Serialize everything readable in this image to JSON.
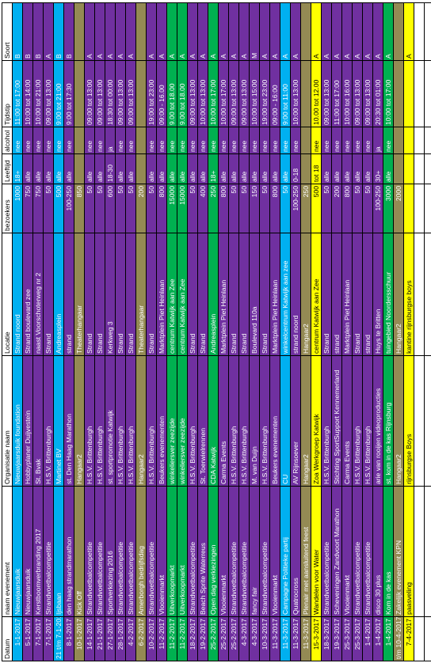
{
  "headers": [
    "Datum",
    "naam evenement",
    "Organisatie naam",
    "Locatie",
    "bezoekers",
    "Leeftijd",
    "alcohol",
    "Tijdstip",
    "Soort"
  ],
  "rows": [
    {
      "c": "cyan",
      "cells": [
        "1-1-2017",
        "Nieuwjaarsduik",
        "Nieuwjaarsduik foundation",
        "Strand noord",
        "1000",
        "18+",
        "nee",
        "11:00 tot 17:00",
        "B"
      ]
    },
    {
      "c": "purple",
      "cells": [
        "5-1-2017",
        "Nieuwjaarsduik",
        "Hobbyplaner Duijvestein",
        "Strand boulevard zee",
        "750",
        "alle",
        "nee",
        "10:00 tot 14:00",
        "B"
      ]
    },
    {
      "c": "purple",
      "cells": [
        "7-1-2017",
        "Kerstboomverbranding 2017",
        "St. Bvak",
        "naast Voorschoterweg nr 2",
        "750",
        "alle",
        "nee",
        "10:00 tot 21:00",
        "B"
      ]
    },
    {
      "c": "purple",
      "cells": [
        "7-1-2017",
        "Strandvoetbalcompetitie",
        "H.S.V. Brittenburgh",
        "Strand",
        "50",
        "alle",
        "nee",
        "09:00 tot 13:00",
        "A"
      ]
    },
    {
      "c": "cyan",
      "cells": [
        "21 t/m 7-1-2017",
        "Ijsbaan",
        "Martinet BV",
        "Andreasplein",
        "500",
        "alle",
        "nee",
        "9:00 tot 21:00",
        "B"
      ]
    },
    {
      "c": "purple",
      "cells": [
        "8-1-2017",
        "den haag strandmarathon",
        "st. Den Haag Marathon",
        "strand",
        "100-250",
        "alle",
        "nee",
        "9:00 tot 17:30",
        "B"
      ]
    },
    {
      "c": "olive",
      "cells": [
        "10-1-2017",
        "Kick Off",
        "Hangaar2",
        "Theaterhangaar",
        "850",
        "",
        "",
        "",
        ""
      ]
    },
    {
      "c": "purple",
      "cells": [
        "14-1-2017",
        "Strandvoetbalcompetitie",
        "H.S.V. Brittenburgh",
        "Strand",
        "50",
        "alle",
        "nee",
        "09:00 tot 13:00",
        "A"
      ]
    },
    {
      "c": "purple",
      "cells": [
        "21-1-2017",
        "Strandvoetbalcompetitie",
        "H.S.V. Brittenburgh",
        "Strand",
        "50",
        "alle",
        "nee",
        "09:00 tot 13:00",
        "A"
      ]
    },
    {
      "c": "purple",
      "cells": [
        "27-1-2017",
        "Sportverkiezing 2016",
        "st. sportpromotie Katwijk",
        "Kerkweg 3",
        "600",
        "18-30",
        "ja",
        "18:30 tot 00:00",
        "A"
      ]
    },
    {
      "c": "purple",
      "cells": [
        "28-1-2017",
        "Strandvoetbalcompetitie",
        "H.S.V. Brittenburgh",
        "Strand",
        "50",
        "alle",
        "nee",
        "09:00 tot 13:00",
        "A"
      ]
    },
    {
      "c": "purple",
      "cells": [
        "4-2-2017",
        "Strandvoetbalcompetitie",
        "H.S.V. Brittenburgh",
        "Strand",
        "50",
        "alle",
        "nee",
        "09:00 tot 13:00",
        "A"
      ]
    },
    {
      "c": "olive",
      "cells": [
        "6-2-2017",
        "Amerborgh bedrijfsdag",
        "Hangaar2",
        "Theaterhangaar",
        "200",
        "",
        "",
        "",
        ""
      ]
    },
    {
      "c": "purple",
      "cells": [
        "10-2-2017",
        "Strandvoetbalcompetitie",
        "H.S.V. Brittenburgh",
        "Strand",
        "50",
        "alle",
        "nee",
        "19:00 tot 23:00",
        "A"
      ]
    },
    {
      "c": "purple",
      "cells": [
        "11-2-2017",
        "Vlooienmarkt",
        "Beukers evenementen",
        "Marktplein Piet Heinlaan",
        "800",
        "alle",
        "nee",
        "09:00 - 16.00",
        "A"
      ]
    },
    {
      "c": "green",
      "cells": [
        "11-2-2017",
        "Uitverkoopmarkt",
        "winkeliersver zeezijde",
        "centrum Katwijk aan Zee",
        "15000",
        "alle",
        "nee",
        "9.00 tot 18.00",
        "A"
      ]
    },
    {
      "c": "green",
      "cells": [
        "11-2-2017",
        "Uitverkoopmarkt",
        "winkeliersver zeezijde",
        "centrum Katwijk aan Zee",
        "15000",
        "alle",
        "nee",
        "9.00 tot 18.00",
        "A"
      ]
    },
    {
      "c": "purple",
      "cells": [
        "18-2-2017",
        "Strandvoetbalcompetitie",
        "H.S.V. Brittenburgh",
        "Strand",
        "50",
        "alle",
        "nee",
        "09:00 tot 13:00",
        "A"
      ]
    },
    {
      "c": "purple",
      "cells": [
        "19-2-2017",
        "Beach Sprite Waterreus",
        "St. Toerwielrennen",
        "Strand",
        "400",
        "alle",
        "nee",
        "10:00 tot 13:00",
        "A"
      ]
    },
    {
      "c": "green",
      "cells": [
        "25-2-2017",
        "Open dag verkiezingen",
        "CDA Katwijk",
        "Andreasplein",
        "250",
        "18+",
        "nee",
        "10:00 tot 17:00",
        "A"
      ]
    },
    {
      "c": "purple",
      "cells": [
        "25-2-2017",
        "Vlooienmarkt",
        "Carma Events",
        "Marktplein Piet Heinlaan",
        "800",
        "alle",
        "nee",
        "10:00 tot 17:00",
        "A"
      ]
    },
    {
      "c": "purple",
      "cells": [
        "25-2-2017",
        "Strandvoetbalcompetitie",
        "H.S.V. Brittenburgh",
        "Strand",
        "50",
        "alle",
        "nee",
        "09:00 tot 13:00",
        "A"
      ]
    },
    {
      "c": "purple",
      "cells": [
        "4-3-2017",
        "Strandvoetbalcompetitie",
        "H.S.V. Brittenburgh",
        "Strand",
        "50",
        "alle",
        "nee",
        "09:00 tot 13:00",
        "A"
      ]
    },
    {
      "c": "purple",
      "cells": [
        "4-3-2017",
        "fancy fair",
        "M. van Duijn",
        "Boulevard 110a",
        "150",
        "alle",
        "nee",
        "10:00 tot 15:00",
        "M"
      ]
    },
    {
      "c": "purple",
      "cells": [
        "10-3-2017",
        "Strandvoetbalcompetitie",
        "H.S.V. Brittenburgh",
        "Strand",
        "50",
        "alle",
        "nee",
        "19:00 tot 23:00",
        "A"
      ]
    },
    {
      "c": "purple",
      "cells": [
        "11-3-2017",
        "Vlooienmarkt",
        "Beukers evenementen",
        "Marktplein Piet Heinlaan",
        "800",
        "alle",
        "nee",
        "09:00 - 16:00",
        "A"
      ]
    },
    {
      "c": "cyan",
      "cells": [
        "11-3-2017",
        "Campagne Politieke partij",
        "CU",
        "winkelcentrum Katwijk aan zee",
        "50",
        "alle",
        "nee",
        "9:00 tot 11:00",
        "A"
      ]
    },
    {
      "c": "purple",
      "cells": [
        "11-3-2017",
        "Quatrocross",
        "AV Rijnsoever",
        "strand noord",
        "100-250",
        "0-18",
        "nee",
        "10:00 tot 13:00",
        "A"
      ]
    },
    {
      "c": "olive",
      "cells": [
        "11-3-2017",
        "Plenair met aansluitend feest",
        "Hangaar2",
        "Hangaar2",
        "250",
        "",
        "",
        "",
        ""
      ]
    },
    {
      "c": "yellow",
      "cells": [
        "15-3-2017",
        "Wandelen voor Water",
        "Zoa Werkgroep Katwijk",
        "centrum Katwijk aan Zee",
        "500",
        "tot 18",
        "nee",
        "10.00 tot 12.00",
        "A"
      ]
    },
    {
      "c": "purple",
      "cells": [
        "18-3-2017",
        "Strandvoetbalcompetitie",
        "H.S.V. Brittenburgh",
        "Strand",
        "50",
        "alle",
        "nee",
        "09:00 tot 13:00",
        "A"
      ]
    },
    {
      "c": "purple",
      "cells": [
        "19-3-2017",
        "Scheveningen Zandvoort Marathon",
        "Stichting SportSupport Kennemerland",
        "strand",
        "200",
        "alle",
        "nee",
        "11:00 tot 17:00",
        "A"
      ]
    },
    {
      "c": "purple",
      "cells": [
        "25-3-2017",
        "Vlooienmarkt",
        "Carma Events",
        "Marktplein Piet Heinlaan",
        "800",
        "alle",
        "nee",
        "10:00 tot 16:00",
        "A"
      ]
    },
    {
      "c": "purple",
      "cells": [
        "25-3-2017",
        "Strandvoetbalcompetitie",
        "H.S.V. Brittenburgh",
        "Strand",
        "50",
        "alle",
        "nee",
        "09:00 tot 13:00",
        "A"
      ]
    },
    {
      "c": "purple",
      "cells": [
        "1-4-2017",
        "Strandvoetbalcompetitie",
        "H.S.V. Brittenburgh",
        "strand",
        "50",
        "alle",
        "nee",
        "09:00 tot 13:00",
        "A"
      ]
    },
    {
      "c": "purple",
      "cells": [
        "1-4-2017",
        "disco 30 plus",
        "arie van rooijen videoproducties",
        "Huys te Britten",
        "100-250",
        "30+",
        "ja",
        "20:30 tot 01:00",
        "A"
      ]
    },
    {
      "c": "green",
      "cells": [
        "1-4-2017",
        "Kom in de kas",
        "st. kom in de kas Rijnsburg",
        "tuingebied Noordersschuur",
        "3000",
        "alle",
        "nee",
        "10:00 tot 17:00",
        "A"
      ]
    },
    {
      "c": "olive",
      "cells": [
        "t/m 10-4-2017",
        "Zakelijk evenement KPN",
        "Hangaar2",
        "Hangaar2",
        "2000",
        "",
        "",
        "",
        ""
      ]
    },
    {
      "c": "yellow",
      "cells": [
        "7-4-2017",
        "paasveling",
        "rijnsburgse Boys",
        "kantine rijnsburgse boys",
        "",
        "",
        "",
        "",
        "A"
      ]
    },
    {
      "c": "white",
      "cells": [
        "",
        "",
        "",
        "",
        "",
        "",
        "",
        "",
        ""
      ]
    },
    {
      "c": "white",
      "cells": [
        "",
        "",
        "",
        "",
        "",
        "",
        "",
        "",
        ""
      ]
    }
  ]
}
